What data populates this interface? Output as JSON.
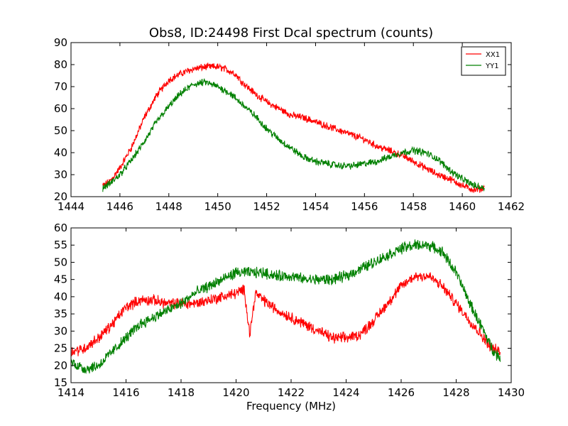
{
  "figure": {
    "title": "Obs8, ID:24498 First Dcal spectrum (counts)"
  },
  "chart_data": [
    {
      "type": "line",
      "title": "Obs8, ID:24498 First Dcal spectrum (counts)",
      "xlabel": "",
      "ylabel": "",
      "xlim": [
        1444,
        1462
      ],
      "ylim": [
        20,
        90
      ],
      "xticks": [
        1444,
        1446,
        1448,
        1450,
        1452,
        1454,
        1456,
        1458,
        1460,
        1462
      ],
      "yticks": [
        20,
        30,
        40,
        50,
        60,
        70,
        80,
        90
      ],
      "grid": false,
      "legend": "top-right",
      "x_range": [
        1445.3,
        1460.9
      ],
      "series": [
        {
          "name": "XX1",
          "color": "#ff0000",
          "x": [
            1445.3,
            1445.6,
            1446.0,
            1446.5,
            1447.0,
            1447.5,
            1448.0,
            1448.5,
            1449.0,
            1449.5,
            1450.0,
            1450.3,
            1450.7,
            1451.0,
            1451.5,
            1452.0,
            1452.5,
            1453.0,
            1453.5,
            1454.0,
            1454.5,
            1455.0,
            1455.5,
            1456.0,
            1456.5,
            1457.0,
            1457.5,
            1458.0,
            1458.5,
            1459.0,
            1459.5,
            1460.0,
            1460.5,
            1460.9
          ],
          "values": [
            25,
            27,
            33,
            43,
            56,
            66,
            73,
            76,
            78,
            79,
            79,
            78,
            76,
            72,
            67,
            63,
            60,
            57,
            56,
            54,
            52,
            50,
            48,
            46,
            43,
            41,
            39,
            36,
            33,
            30,
            28,
            25,
            23,
            24
          ]
        },
        {
          "name": "YY1",
          "color": "#008000",
          "x": [
            1445.3,
            1445.6,
            1446.0,
            1446.5,
            1447.0,
            1447.5,
            1448.0,
            1448.5,
            1449.0,
            1449.5,
            1450.0,
            1450.5,
            1451.0,
            1451.5,
            1452.0,
            1452.5,
            1453.0,
            1453.5,
            1454.0,
            1454.5,
            1455.0,
            1455.5,
            1456.0,
            1456.5,
            1457.0,
            1457.5,
            1458.0,
            1458.5,
            1459.0,
            1459.5,
            1460.0,
            1460.5,
            1460.9
          ],
          "values": [
            24,
            26,
            30,
            37,
            45,
            54,
            61,
            67,
            71,
            72,
            70,
            67,
            62,
            57,
            51,
            46,
            42,
            38,
            36,
            35,
            34,
            34,
            35,
            36,
            38,
            40,
            41,
            40,
            37,
            32,
            28,
            25,
            24
          ]
        }
      ]
    },
    {
      "type": "line",
      "title": "",
      "xlabel": "Frequency (MHz)",
      "ylabel": "",
      "xlim": [
        1414,
        1430
      ],
      "ylim": [
        15,
        60
      ],
      "xticks": [
        1414,
        1416,
        1418,
        1420,
        1422,
        1424,
        1426,
        1428,
        1430
      ],
      "yticks": [
        15,
        20,
        25,
        30,
        35,
        40,
        45,
        50,
        55,
        60
      ],
      "grid": false,
      "x_range": [
        1414.0,
        1429.6
      ],
      "series": [
        {
          "name": "",
          "color": "#ff0000",
          "x": [
            1414.0,
            1414.5,
            1415.0,
            1415.5,
            1416.0,
            1416.5,
            1417.0,
            1417.5,
            1418.0,
            1418.5,
            1419.0,
            1419.5,
            1420.0,
            1420.3,
            1420.5,
            1420.7,
            1421.0,
            1421.5,
            1422.0,
            1422.5,
            1423.0,
            1423.5,
            1424.0,
            1424.5,
            1425.0,
            1425.5,
            1426.0,
            1426.5,
            1427.0,
            1427.5,
            1428.0,
            1428.5,
            1429.0,
            1429.3,
            1429.6
          ],
          "values": [
            24,
            25,
            28,
            32,
            37,
            39,
            39,
            38,
            38,
            38,
            39,
            40,
            41,
            42,
            29,
            41,
            39,
            36,
            34,
            32,
            30,
            28,
            28,
            29,
            33,
            38,
            43,
            46,
            46,
            43,
            38,
            33,
            28,
            25,
            24
          ]
        },
        {
          "name": "",
          "color": "#008000",
          "x": [
            1414.0,
            1414.5,
            1415.0,
            1415.5,
            1416.0,
            1416.5,
            1417.0,
            1417.5,
            1418.0,
            1418.5,
            1419.0,
            1419.5,
            1420.0,
            1420.5,
            1421.0,
            1421.5,
            1422.0,
            1422.5,
            1423.0,
            1423.5,
            1424.0,
            1424.5,
            1425.0,
            1425.5,
            1426.0,
            1426.5,
            1427.0,
            1427.5,
            1428.0,
            1428.5,
            1429.0,
            1429.3,
            1429.6
          ],
          "values": [
            21,
            19,
            20,
            24,
            28,
            32,
            34,
            36,
            38,
            41,
            43,
            45,
            47,
            47,
            47,
            46,
            46,
            45,
            45,
            45,
            46,
            48,
            50,
            52,
            54,
            55,
            55,
            53,
            47,
            38,
            30,
            25,
            22
          ]
        }
      ]
    }
  ]
}
